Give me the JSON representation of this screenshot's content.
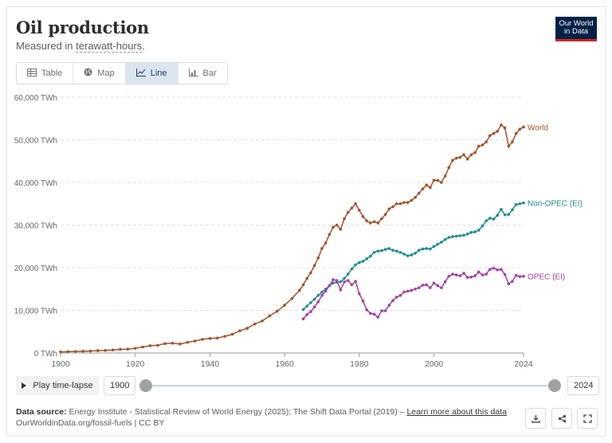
{
  "header": {
    "title": "Oil production",
    "subtitle_prefix": "Measured in ",
    "subtitle_unit": "terawatt-hours",
    "subtitle_suffix": ".",
    "logo_line1": "Our World",
    "logo_line2": "in Data"
  },
  "tabs": [
    {
      "label": "Table",
      "icon": "table-icon"
    },
    {
      "label": "Map",
      "icon": "globe-icon"
    },
    {
      "label": "Line",
      "icon": "line-chart-icon",
      "active": true
    },
    {
      "label": "Bar",
      "icon": "bar-chart-icon"
    }
  ],
  "controls": {
    "play_label": "Play time-lapse",
    "start_year": "1900",
    "end_year": "2024"
  },
  "footer": {
    "source_label": "Data source:",
    "source_text": "Energy Institute - Statistical Review of World Energy (2025); The Shift Data Portal (2019) –",
    "learn_more": "Learn more about this data",
    "url_text": "OurWorldinData.org/fossil-fuels | CC BY"
  },
  "chart_data": {
    "type": "line",
    "title": "Oil production",
    "subtitle": "Measured in terawatt-hours.",
    "ylim": [
      0,
      60000
    ],
    "xlim": [
      1900,
      2024
    ],
    "yticks": [
      "0 TWh",
      "10,000 TWh",
      "20,000 TWh",
      "30,000 TWh",
      "40,000 TWh",
      "50,000 TWh",
      "60,000 TWh"
    ],
    "ytick_values": [
      0,
      10000,
      20000,
      30000,
      40000,
      50000,
      60000
    ],
    "xticks": [
      1900,
      1920,
      1940,
      1960,
      1980,
      2000,
      2024
    ],
    "grid": true,
    "series": [
      {
        "name": "World",
        "color": "#a2522a",
        "x": [
          1900,
          1902,
          1904,
          1906,
          1908,
          1910,
          1912,
          1914,
          1916,
          1918,
          1920,
          1922,
          1924,
          1926,
          1928,
          1930,
          1932,
          1934,
          1936,
          1938,
          1940,
          1942,
          1944,
          1946,
          1948,
          1950,
          1952,
          1954,
          1956,
          1958,
          1960,
          1962,
          1964,
          1965,
          1966,
          1967,
          1968,
          1969,
          1970,
          1971,
          1972,
          1973,
          1974,
          1975,
          1976,
          1977,
          1978,
          1979,
          1980,
          1981,
          1982,
          1983,
          1984,
          1985,
          1986,
          1987,
          1988,
          1989,
          1990,
          1991,
          1992,
          1993,
          1994,
          1995,
          1996,
          1997,
          1998,
          1999,
          2000,
          2001,
          2002,
          2003,
          2004,
          2005,
          2006,
          2007,
          2008,
          2009,
          2010,
          2011,
          2012,
          2013,
          2014,
          2015,
          2016,
          2017,
          2018,
          2019,
          2020,
          2021,
          2022,
          2023,
          2024
        ],
        "y": [
          250,
          300,
          350,
          400,
          450,
          550,
          600,
          700,
          850,
          900,
          1100,
          1400,
          1700,
          1800,
          2200,
          2300,
          2100,
          2500,
          2800,
          3200,
          3400,
          3500,
          3900,
          4400,
          5200,
          5800,
          6800,
          7500,
          8700,
          9800,
          11200,
          12800,
          14700,
          16000,
          17500,
          18800,
          20500,
          22300,
          24500,
          25800,
          27800,
          29500,
          30000,
          29000,
          31500,
          33000,
          34000,
          35000,
          33500,
          32000,
          31000,
          30500,
          30800,
          30500,
          31500,
          32500,
          33800,
          34300,
          35000,
          35000,
          35300,
          35300,
          35800,
          36500,
          37500,
          38500,
          39400,
          38800,
          40500,
          40500,
          40000,
          41500,
          43500,
          45200,
          45700,
          45900,
          46500,
          45500,
          46500,
          47000,
          48500,
          48800,
          49500,
          51000,
          51500,
          52000,
          53500,
          52800,
          48500,
          49500,
          51500,
          52500,
          53000
        ]
      },
      {
        "name": "Non-OPEC (EI)",
        "color": "#1c8c8e",
        "x": [
          1965,
          1966,
          1967,
          1968,
          1969,
          1970,
          1971,
          1972,
          1973,
          1974,
          1975,
          1976,
          1977,
          1978,
          1979,
          1980,
          1981,
          1982,
          1983,
          1984,
          1985,
          1986,
          1987,
          1988,
          1989,
          1990,
          1991,
          1992,
          1993,
          1994,
          1995,
          1996,
          1997,
          1998,
          1999,
          2000,
          2001,
          2002,
          2003,
          2004,
          2005,
          2006,
          2007,
          2008,
          2009,
          2010,
          2011,
          2012,
          2013,
          2014,
          2015,
          2016,
          2017,
          2018,
          2019,
          2020,
          2021,
          2022,
          2023,
          2024
        ],
        "y": [
          10200,
          11000,
          11800,
          12600,
          13500,
          14300,
          15000,
          15800,
          16400,
          16600,
          16700,
          17500,
          18500,
          19700,
          20700,
          21200,
          21500,
          22100,
          22700,
          23600,
          23900,
          24000,
          24300,
          24500,
          24100,
          23900,
          23600,
          23200,
          22800,
          23000,
          23400,
          24100,
          24400,
          24500,
          24400,
          25000,
          25500,
          26000,
          26600,
          27100,
          27300,
          27400,
          27500,
          27600,
          27900,
          28300,
          28400,
          28800,
          29800,
          31000,
          31600,
          31400,
          32300,
          33700,
          32400,
          32500,
          33600,
          34800,
          35000,
          35200
        ]
      },
      {
        "name": "OPEC (EI)",
        "color": "#a53ea5",
        "x": [
          1965,
          1966,
          1967,
          1968,
          1969,
          1970,
          1971,
          1972,
          1973,
          1974,
          1975,
          1976,
          1977,
          1978,
          1979,
          1980,
          1981,
          1982,
          1983,
          1984,
          1985,
          1986,
          1987,
          1988,
          1989,
          1990,
          1991,
          1992,
          1993,
          1994,
          1995,
          1996,
          1997,
          1998,
          1999,
          2000,
          2001,
          2002,
          2003,
          2004,
          2005,
          2006,
          2007,
          2008,
          2009,
          2010,
          2011,
          2012,
          2013,
          2014,
          2015,
          2016,
          2017,
          2018,
          2019,
          2020,
          2021,
          2022,
          2023,
          2024
        ],
        "y": [
          8000,
          9000,
          9700,
          10800,
          12000,
          13500,
          14500,
          15800,
          17200,
          17000,
          14800,
          16700,
          17000,
          16000,
          16800,
          13900,
          12200,
          10100,
          9300,
          9100,
          8400,
          9900,
          9900,
          11200,
          12300,
          13100,
          13500,
          14300,
          14500,
          14700,
          15000,
          15300,
          15900,
          16000,
          15300,
          16400,
          15800,
          15300,
          16700,
          18000,
          18500,
          18300,
          18100,
          18700,
          17700,
          17800,
          18100,
          19000,
          18300,
          18500,
          19600,
          19900,
          19500,
          19600,
          18400,
          16200,
          16800,
          18200,
          17900,
          18000
        ]
      }
    ]
  }
}
